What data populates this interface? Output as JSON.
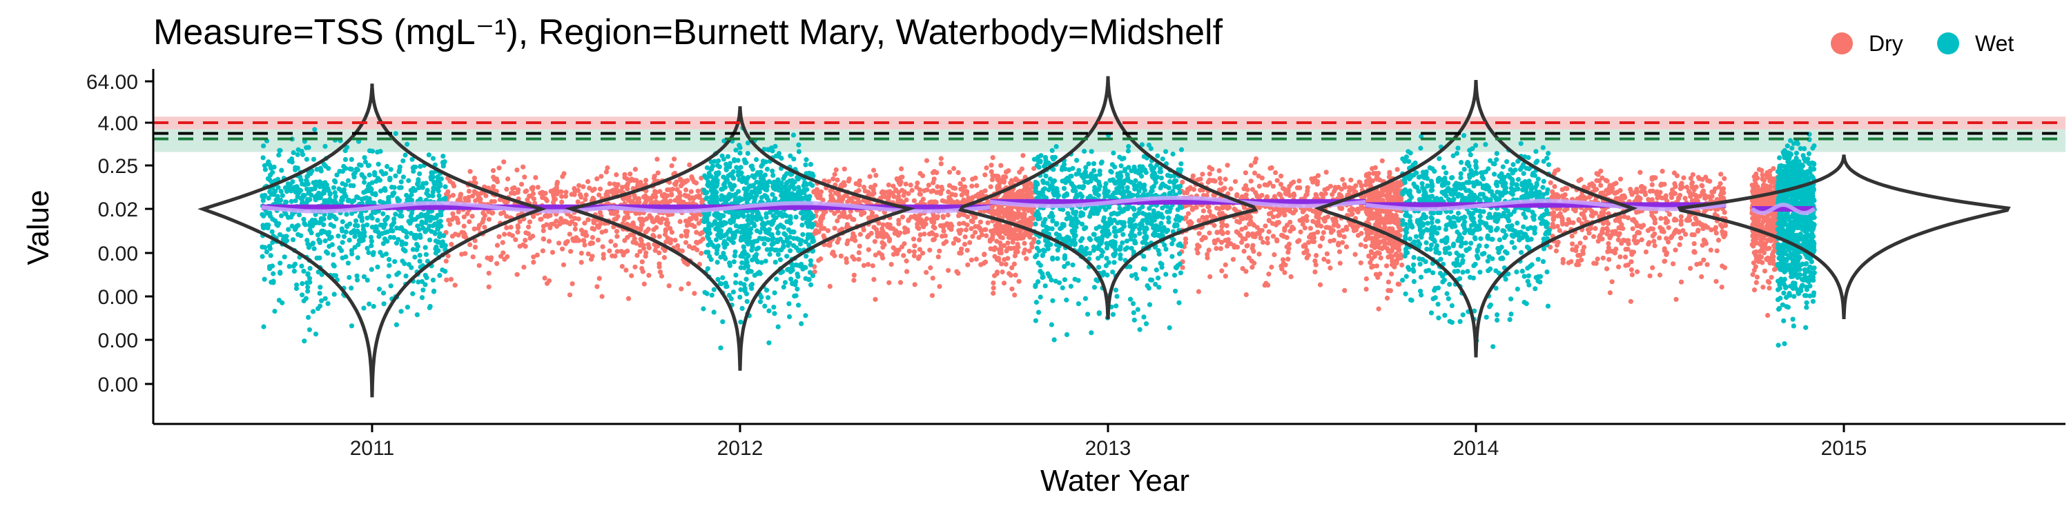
{
  "chart_data": {
    "type": "scatter",
    "title": "Measure=TSS (mgL⁻¹), Region=Burnett Mary, Waterbody=Midshelf",
    "xlabel": "Water Year",
    "ylabel": "Value",
    "x_ticks": [
      "2011",
      "2012",
      "2013",
      "2014",
      "2015"
    ],
    "y_ticks": [
      "64.00",
      "4.00",
      "0.25",
      "0.02",
      "0.00",
      "0.00",
      "0.00",
      "0.00"
    ],
    "y_tick_levels": [
      64,
      4,
      0.25,
      0.02,
      0.001,
      0.0001,
      1e-05,
      1e-06
    ],
    "y_scale": "log2",
    "grid": false,
    "legend": {
      "placement": "top-right",
      "entries": [
        {
          "name": "Dry",
          "color": "#F8766D"
        },
        {
          "name": "Wet",
          "color": "#00BFC4"
        }
      ]
    },
    "guidelines": [
      {
        "value": 4.0,
        "color": "#e31a1c",
        "style": "dashed",
        "band": [
          2.6,
          6.0
        ],
        "band_color": "#f4b6b6"
      },
      {
        "value": 2.0,
        "color": "#000000",
        "style": "dashed"
      },
      {
        "value": 1.4,
        "color": "#1a7a3a",
        "style": "dashed",
        "band": [
          0.6,
          2.6
        ],
        "band_color": "#bfe3d4"
      }
    ],
    "years": [
      {
        "label": "2011",
        "wet_range": [
          2010.7,
          2011.2
        ],
        "dry_range": [
          2011.2,
          2011.65
        ],
        "median": 0.022,
        "trend_color": "#8a2be2",
        "violin": {
          "center": 0.02,
          "max": 55,
          "min": 5e-07,
          "width": 0.45
        }
      },
      {
        "label": "2012",
        "wet_range": [
          2011.9,
          2012.2
        ],
        "dry_range": [
          2011.65,
          2011.9
        ],
        "dry_range2": [
          2012.2,
          2012.68
        ],
        "median": 0.022,
        "trend_color": "#8a2be2",
        "violin": {
          "center": 0.02,
          "max": 12,
          "min": 2e-06,
          "width": 0.45
        }
      },
      {
        "label": "2013",
        "wet_range": [
          2012.8,
          2013.2
        ],
        "dry_range": [
          2012.68,
          2012.8
        ],
        "dry_range2": [
          2013.2,
          2013.7
        ],
        "median": 0.03,
        "trend_color": "#8a2be2",
        "violin": {
          "center": 0.02,
          "max": 90,
          "min": 3e-05,
          "width": 0.4
        }
      },
      {
        "label": "2014",
        "wet_range": [
          2013.8,
          2014.2
        ],
        "dry_range": [
          2013.7,
          2013.8
        ],
        "dry_range2": [
          2014.2,
          2014.68
        ],
        "median": 0.025,
        "trend_color": "#8a2be2",
        "violin": {
          "center": 0.02,
          "max": 70,
          "min": 4e-06,
          "width": 0.42
        }
      },
      {
        "label": "2015",
        "wet_range": [
          2014.82,
          2014.92
        ],
        "dry_range": [
          2014.75,
          2014.82
        ],
        "median": 0.02,
        "trend_color": "#8a2be2",
        "violin": {
          "center": 0.02,
          "max": 0.5,
          "min": 3e-05,
          "width": 0.45
        }
      }
    ]
  }
}
